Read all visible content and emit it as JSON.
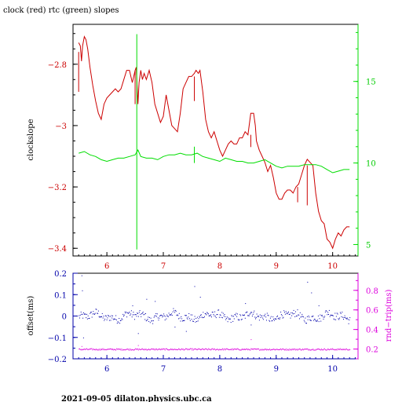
{
  "title": "clock (red) rtc (green) slopes",
  "footer": "2021-09-05  dilaton.physics.ubc.ca",
  "colors": {
    "red": "#cc0000",
    "green": "#00dd00",
    "blue": "#0000aa",
    "magenta": "#dd00dd",
    "axis": "#000000"
  },
  "chart_data": [
    {
      "type": "line",
      "title": "clock (red) rtc (green) slopes",
      "xlim": [
        5.4,
        10.45
      ],
      "x_ticks": [
        6,
        7,
        8,
        9,
        10
      ],
      "x_tick_color": "#cc0000",
      "ylabel_left": "clockslope",
      "ylim_left": [
        -3.425,
        -2.67
      ],
      "y_ticks_left": [
        -2.8,
        -3,
        -3.2,
        -3.4
      ],
      "y_tick_labels_left": [
        "−2.8",
        "−3",
        "−3.2",
        "−3.4"
      ],
      "ylim_right": [
        4.3,
        18.5
      ],
      "y_ticks_right": [
        5,
        10,
        15
      ],
      "y_tick_labels_right": [
        "5",
        "10",
        "15"
      ],
      "series": [
        {
          "axis": "left",
          "color": "#cc0000",
          "x": [
            5.5,
            5.53,
            5.55,
            5.57,
            5.6,
            5.63,
            5.66,
            5.7,
            5.75,
            5.8,
            5.85,
            5.9,
            5.95,
            6.0,
            6.05,
            6.1,
            6.15,
            6.2,
            6.25,
            6.3,
            6.35,
            6.4,
            6.45,
            6.5,
            6.52,
            6.55,
            6.57,
            6.6,
            6.63,
            6.66,
            6.7,
            6.75,
            6.8,
            6.85,
            6.9,
            6.95,
            7.0,
            7.05,
            7.1,
            7.15,
            7.2,
            7.25,
            7.3,
            7.35,
            7.4,
            7.45,
            7.5,
            7.55,
            7.58,
            7.62,
            7.65,
            7.7,
            7.75,
            7.8,
            7.85,
            7.9,
            7.95,
            8.0,
            8.05,
            8.1,
            8.15,
            8.2,
            8.25,
            8.3,
            8.35,
            8.4,
            8.45,
            8.5,
            8.55,
            8.6,
            8.63,
            8.65,
            8.7,
            8.75,
            8.8,
            8.85,
            8.9,
            8.95,
            9.0,
            9.05,
            9.1,
            9.15,
            9.2,
            9.25,
            9.3,
            9.35,
            9.4,
            9.45,
            9.5,
            9.55,
            9.6,
            9.65,
            9.7,
            9.75,
            9.8,
            9.85,
            9.9,
            9.95,
            10.0,
            10.05,
            10.1,
            10.15,
            10.2,
            10.25,
            10.3
          ],
          "y": [
            -2.73,
            -2.74,
            -2.79,
            -2.74,
            -2.71,
            -2.72,
            -2.75,
            -2.81,
            -2.87,
            -2.92,
            -2.96,
            -2.98,
            -2.93,
            -2.91,
            -2.9,
            -2.89,
            -2.88,
            -2.89,
            -2.88,
            -2.85,
            -2.82,
            -2.82,
            -2.86,
            -2.82,
            -2.81,
            -2.93,
            -2.86,
            -2.82,
            -2.85,
            -2.83,
            -2.85,
            -2.82,
            -2.86,
            -2.93,
            -2.96,
            -2.99,
            -2.97,
            -2.9,
            -2.95,
            -3.0,
            -3.01,
            -3.02,
            -2.96,
            -2.88,
            -2.86,
            -2.84,
            -2.84,
            -2.83,
            -2.82,
            -2.83,
            -2.82,
            -2.89,
            -2.98,
            -3.02,
            -3.04,
            -3.02,
            -3.05,
            -3.08,
            -3.1,
            -3.08,
            -3.06,
            -3.05,
            -3.06,
            -3.06,
            -3.04,
            -3.04,
            -3.02,
            -3.03,
            -2.96,
            -2.96,
            -3.0,
            -3.05,
            -3.08,
            -3.1,
            -3.12,
            -3.15,
            -3.13,
            -3.17,
            -3.22,
            -3.24,
            -3.24,
            -3.22,
            -3.21,
            -3.21,
            -3.22,
            -3.2,
            -3.19,
            -3.16,
            -3.13,
            -3.11,
            -3.12,
            -3.13,
            -3.22,
            -3.28,
            -3.31,
            -3.32,
            -3.37,
            -3.38,
            -3.4,
            -3.37,
            -3.35,
            -3.36,
            -3.34,
            -3.33,
            -3.33
          ]
        },
        {
          "axis": "right",
          "color": "#00dd00",
          "x": [
            5.5,
            5.6,
            5.7,
            5.8,
            5.9,
            6.0,
            6.1,
            6.2,
            6.3,
            6.4,
            6.5,
            6.55,
            6.6,
            6.7,
            6.8,
            6.9,
            7.0,
            7.1,
            7.2,
            7.3,
            7.4,
            7.5,
            7.6,
            7.7,
            7.8,
            7.9,
            8.0,
            8.1,
            8.2,
            8.3,
            8.4,
            8.5,
            8.6,
            8.7,
            8.8,
            8.9,
            9.0,
            9.1,
            9.2,
            9.3,
            9.4,
            9.5,
            9.6,
            9.7,
            9.8,
            9.9,
            10.0,
            10.1,
            10.2,
            10.3
          ],
          "y": [
            10.6,
            10.7,
            10.5,
            10.4,
            10.2,
            10.1,
            10.2,
            10.3,
            10.3,
            10.4,
            10.5,
            10.8,
            10.4,
            10.3,
            10.3,
            10.2,
            10.4,
            10.5,
            10.5,
            10.6,
            10.5,
            10.5,
            10.6,
            10.4,
            10.3,
            10.2,
            10.1,
            10.3,
            10.2,
            10.1,
            10.1,
            10.0,
            10.0,
            10.1,
            10.2,
            10.0,
            9.8,
            9.7,
            9.8,
            9.8,
            9.8,
            9.9,
            9.9,
            9.9,
            9.8,
            9.6,
            9.4,
            9.5,
            9.6,
            9.6
          ]
        }
      ],
      "spikes": [
        {
          "axis": "right",
          "x": 6.53,
          "y_from": 4.7,
          "y_to": 17.9,
          "color": "#00dd00"
        },
        {
          "axis": "left",
          "x": 5.5,
          "y_from": -2.89,
          "y_to": -2.76,
          "color": "#cc0000"
        },
        {
          "axis": "left",
          "x": 6.5,
          "y_from": -2.82,
          "y_to": -2.93,
          "color": "#cc0000"
        },
        {
          "axis": "left",
          "x": 7.55,
          "y_from": -2.84,
          "y_to": -2.92,
          "color": "#cc0000"
        },
        {
          "axis": "left",
          "x": 8.55,
          "y_from": -3.03,
          "y_to": -3.07,
          "color": "#cc0000"
        },
        {
          "axis": "left",
          "x": 9.38,
          "y_from": -3.2,
          "y_to": -3.25,
          "color": "#cc0000"
        },
        {
          "axis": "left",
          "x": 9.55,
          "y_from": -3.13,
          "y_to": -3.26,
          "color": "#cc0000"
        },
        {
          "axis": "right",
          "x": 7.55,
          "y_from": 10.5,
          "y_to": 11.0,
          "color": "#00dd00"
        },
        {
          "axis": "right",
          "x": 7.55,
          "y_from": 10.5,
          "y_to": 10.0,
          "color": "#00dd00"
        }
      ]
    },
    {
      "type": "scatter",
      "xlim": [
        5.4,
        10.45
      ],
      "x_ticks": [
        6,
        7,
        8,
        9,
        10
      ],
      "x_tick_color": "#0000aa",
      "ylabel_left": "offset(ms)",
      "ylim_left": [
        -0.2,
        0.2
      ],
      "y_ticks_left": [
        0.2,
        0.1,
        0,
        -0.1,
        -0.2
      ],
      "y_tick_labels_left": [
        "0.2",
        "0.1",
        "0",
        "−0.1",
        "−0.2"
      ],
      "ylabel_right": "rnd−trip(ms)",
      "ylim_right": [
        0.1,
        0.975
      ],
      "y_ticks_right": [
        0.2,
        0.4,
        0.6,
        0.8
      ],
      "y_tick_labels_right": [
        "0.2",
        "0.4",
        "0.6",
        "0.8"
      ],
      "series": [
        {
          "axis": "left",
          "color": "#0000aa",
          "style": "dots",
          "x_range": [
            5.5,
            10.3
          ],
          "baseline": 0.0,
          "spread": 0.018,
          "count": 420,
          "outliers": [
            {
              "x": 5.55,
              "y": 0.19
            },
            {
              "x": 5.56,
              "y": 0.12
            },
            {
              "x": 5.58,
              "y": -0.1
            },
            {
              "x": 6.45,
              "y": 0.05
            },
            {
              "x": 6.55,
              "y": -0.08
            },
            {
              "x": 6.7,
              "y": 0.08
            },
            {
              "x": 6.85,
              "y": 0.07
            },
            {
              "x": 7.2,
              "y": -0.05
            },
            {
              "x": 7.4,
              "y": -0.07
            },
            {
              "x": 7.55,
              "y": 0.14
            },
            {
              "x": 7.65,
              "y": 0.09
            },
            {
              "x": 8.45,
              "y": 0.06
            },
            {
              "x": 8.55,
              "y": -0.04
            },
            {
              "x": 9.55,
              "y": 0.16
            },
            {
              "x": 9.62,
              "y": 0.11
            },
            {
              "x": 9.75,
              "y": 0.05
            }
          ]
        },
        {
          "axis": "right",
          "color": "#dd00dd",
          "style": "dots",
          "x_range": [
            5.5,
            10.3
          ],
          "baseline": 0.2,
          "spread": 0.008,
          "count": 420,
          "outliers": [
            {
              "x": 5.55,
              "y": 0.23
            },
            {
              "x": 6.55,
              "y": 0.24
            },
            {
              "x": 8.55,
              "y": 0.3
            }
          ]
        }
      ]
    }
  ]
}
